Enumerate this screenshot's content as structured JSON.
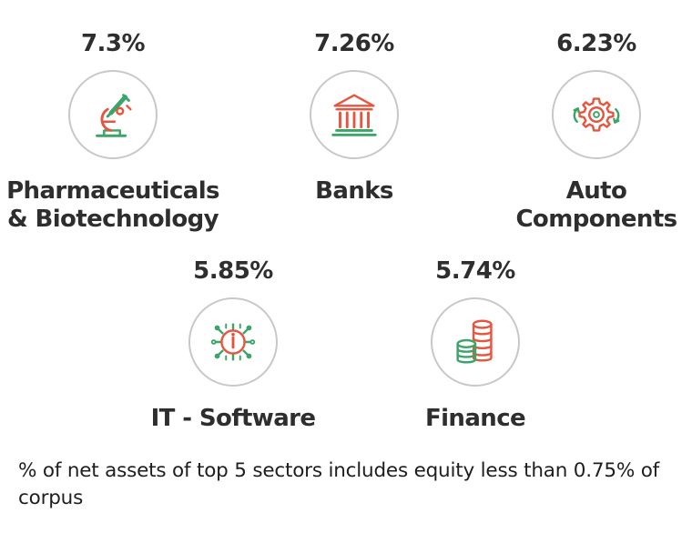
{
  "sectors": [
    {
      "percent": "7.3%",
      "name": "Pharmaceuticals\n& Biotechnology",
      "icon": "microscope-icon"
    },
    {
      "percent": "7.26%",
      "name": "Banks",
      "icon": "bank-icon"
    },
    {
      "percent": "6.23%",
      "name": "Auto\nComponents",
      "icon": "gear-icon"
    },
    {
      "percent": "5.85%",
      "name": "IT - Software",
      "icon": "chip-icon"
    },
    {
      "percent": "5.74%",
      "name": "Finance",
      "icon": "coins-icon"
    }
  ],
  "footnote": "% of net assets of top 5 sectors includes equity less than 0.75% of corpus",
  "colors": {
    "green": "#3aa567",
    "red": "#e8553f",
    "circle": "#c8c8c8",
    "text": "#2e2e2e"
  }
}
